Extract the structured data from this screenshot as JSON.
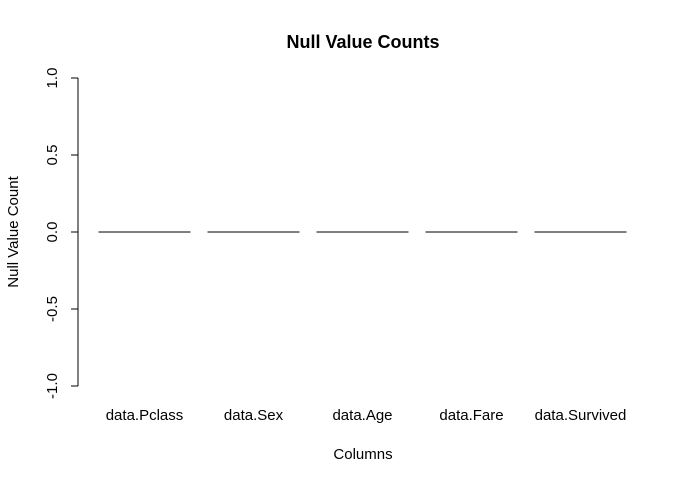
{
  "chart_data": {
    "type": "bar",
    "title": "Null Value Counts",
    "xlabel": "Columns",
    "ylabel": "Null Value Count",
    "categories": [
      "data.Pclass",
      "data.Sex",
      "data.Age",
      "data.Fare",
      "data.Survived"
    ],
    "values": [
      0,
      0,
      0,
      0,
      0
    ],
    "ylim": [
      -1.0,
      1.0
    ],
    "yticks": [
      -1.0,
      -0.5,
      0.0,
      0.5,
      1.0
    ],
    "ytick_labels": [
      "-1.0",
      "-0.5",
      "0.0",
      "0.5",
      "1.0"
    ],
    "grid": false,
    "legend": "none",
    "colors": {
      "bar_stroke": "#000000",
      "axis": "#000000",
      "background": "#ffffff"
    }
  }
}
